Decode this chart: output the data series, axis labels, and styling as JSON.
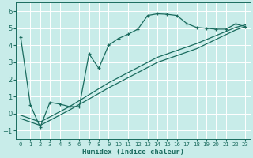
{
  "xlabel": "Humidex (Indice chaleur)",
  "bg_color": "#c8ece9",
  "grid_color": "#ffffff",
  "line_color": "#1a6b5e",
  "xlim": [
    -0.5,
    23.5
  ],
  "ylim": [
    -1.5,
    6.5
  ],
  "xticks": [
    0,
    1,
    2,
    3,
    4,
    5,
    6,
    7,
    8,
    9,
    10,
    11,
    12,
    13,
    14,
    15,
    16,
    17,
    18,
    19,
    20,
    21,
    22,
    23
  ],
  "yticks": [
    -1,
    0,
    1,
    2,
    3,
    4,
    5,
    6
  ],
  "series1_x": [
    0,
    1,
    2,
    3,
    4,
    5,
    6,
    7,
    8,
    9,
    10,
    11,
    12,
    13,
    14,
    15,
    16,
    17,
    18,
    19,
    20,
    21,
    22,
    23
  ],
  "series1_y": [
    4.5,
    0.5,
    -0.8,
    0.65,
    0.55,
    0.4,
    0.4,
    3.5,
    2.65,
    4.0,
    4.4,
    4.65,
    4.95,
    5.75,
    5.85,
    5.82,
    5.75,
    5.28,
    5.05,
    5.0,
    4.95,
    4.95,
    5.25,
    5.1
  ],
  "series2_x": [
    0,
    2,
    5,
    9,
    14,
    18,
    22,
    23
  ],
  "series2_y": [
    -0.3,
    -0.7,
    0.2,
    1.5,
    3.0,
    3.8,
    4.9,
    5.1
  ],
  "series3_x": [
    0,
    2,
    5,
    9,
    14,
    18,
    22,
    23
  ],
  "series3_y": [
    -0.1,
    -0.5,
    0.4,
    1.8,
    3.3,
    4.1,
    5.05,
    5.2
  ],
  "xlabel_fontsize": 6.5,
  "tick_fontsize": 5.5
}
